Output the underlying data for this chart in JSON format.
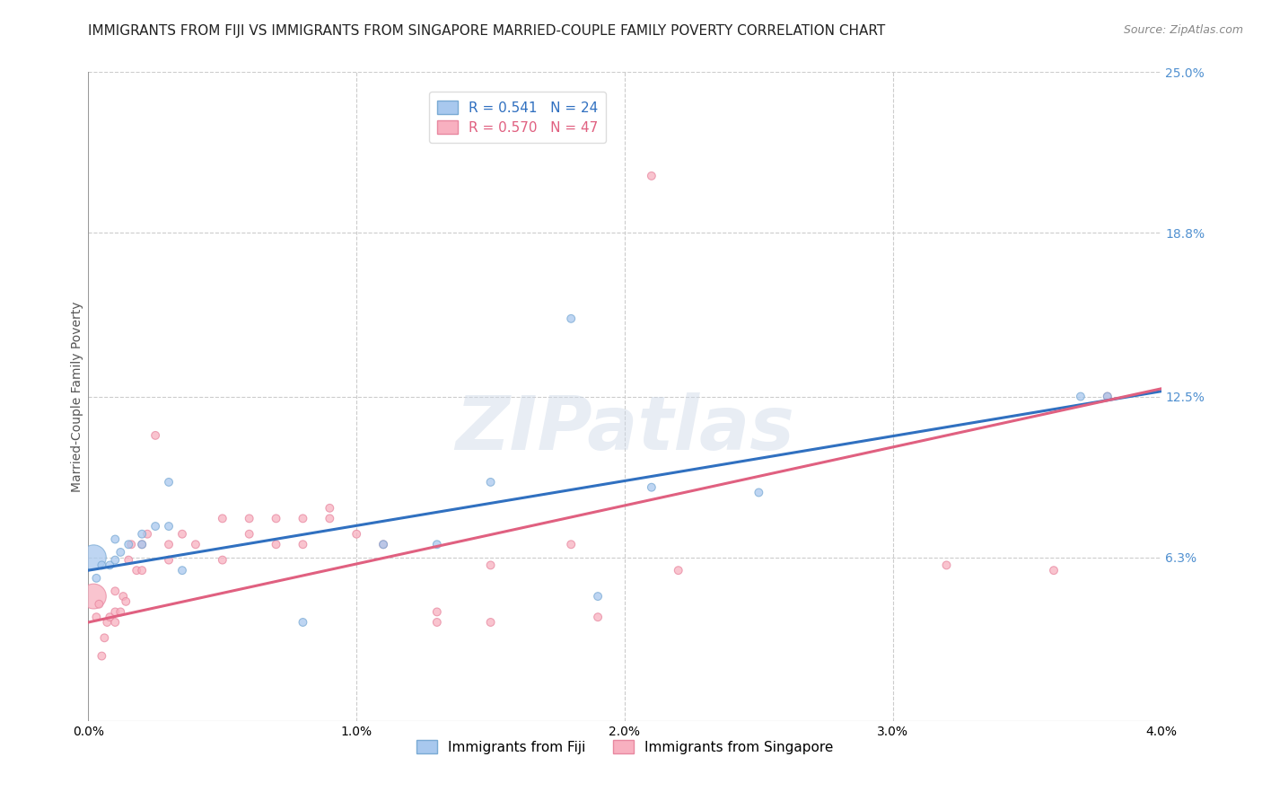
{
  "title": "IMMIGRANTS FROM FIJI VS IMMIGRANTS FROM SINGAPORE MARRIED-COUPLE FAMILY POVERTY CORRELATION CHART",
  "source": "Source: ZipAtlas.com",
  "ylabel": "Married-Couple Family Poverty",
  "xlim": [
    0.0,
    0.04
  ],
  "ylim": [
    0.0,
    0.25
  ],
  "xticks": [
    0.0,
    0.01,
    0.02,
    0.03,
    0.04
  ],
  "xtick_labels": [
    "0.0%",
    "1.0%",
    "2.0%",
    "3.0%",
    "4.0%"
  ],
  "ytick_labels_right": [
    "6.3%",
    "12.5%",
    "18.8%",
    "25.0%"
  ],
  "ytick_vals_right": [
    0.063,
    0.125,
    0.188,
    0.25
  ],
  "fiji_color": "#a8c8ee",
  "fiji_edge_color": "#7aaad4",
  "fiji_line_color": "#3070c0",
  "singapore_color": "#f8b0c0",
  "singapore_edge_color": "#e888a0",
  "singapore_line_color": "#e06080",
  "fiji_R": 0.541,
  "fiji_N": 24,
  "singapore_R": 0.57,
  "singapore_N": 47,
  "legend_label_fiji": "Immigrants from Fiji",
  "legend_label_singapore": "Immigrants from Singapore",
  "watermark": "ZIPatlas",
  "fiji_scatter_x": [
    0.0002,
    0.0003,
    0.0005,
    0.0008,
    0.001,
    0.001,
    0.0012,
    0.0015,
    0.002,
    0.002,
    0.0025,
    0.003,
    0.003,
    0.0035,
    0.008,
    0.011,
    0.013,
    0.015,
    0.018,
    0.019,
    0.021,
    0.025,
    0.037,
    0.038
  ],
  "fiji_scatter_y": [
    0.063,
    0.055,
    0.06,
    0.06,
    0.062,
    0.07,
    0.065,
    0.068,
    0.068,
    0.072,
    0.075,
    0.075,
    0.092,
    0.058,
    0.038,
    0.068,
    0.068,
    0.092,
    0.155,
    0.048,
    0.09,
    0.088,
    0.125,
    0.125
  ],
  "fiji_bubble_sizes": [
    400,
    40,
    40,
    40,
    40,
    40,
    40,
    40,
    40,
    40,
    40,
    40,
    40,
    40,
    40,
    40,
    40,
    40,
    40,
    40,
    40,
    40,
    40,
    40
  ],
  "singapore_scatter_x": [
    0.0002,
    0.0003,
    0.0004,
    0.0005,
    0.0006,
    0.0007,
    0.0008,
    0.001,
    0.001,
    0.001,
    0.0012,
    0.0013,
    0.0014,
    0.0015,
    0.0016,
    0.0018,
    0.002,
    0.002,
    0.0022,
    0.0025,
    0.003,
    0.003,
    0.0035,
    0.004,
    0.005,
    0.005,
    0.006,
    0.006,
    0.007,
    0.007,
    0.008,
    0.008,
    0.009,
    0.009,
    0.01,
    0.011,
    0.013,
    0.013,
    0.015,
    0.015,
    0.018,
    0.019,
    0.021,
    0.022,
    0.032,
    0.036,
    0.038
  ],
  "singapore_scatter_y": [
    0.048,
    0.04,
    0.045,
    0.025,
    0.032,
    0.038,
    0.04,
    0.05,
    0.038,
    0.042,
    0.042,
    0.048,
    0.046,
    0.062,
    0.068,
    0.058,
    0.058,
    0.068,
    0.072,
    0.11,
    0.062,
    0.068,
    0.072,
    0.068,
    0.062,
    0.078,
    0.072,
    0.078,
    0.068,
    0.078,
    0.068,
    0.078,
    0.078,
    0.082,
    0.072,
    0.068,
    0.038,
    0.042,
    0.038,
    0.06,
    0.068,
    0.04,
    0.21,
    0.058,
    0.06,
    0.058,
    0.125
  ],
  "singapore_bubble_sizes": [
    400,
    40,
    40,
    40,
    40,
    40,
    40,
    40,
    40,
    40,
    40,
    40,
    40,
    40,
    40,
    40,
    40,
    40,
    40,
    40,
    40,
    40,
    40,
    40,
    40,
    40,
    40,
    40,
    40,
    40,
    40,
    40,
    40,
    40,
    40,
    40,
    40,
    40,
    40,
    40,
    40,
    40,
    40,
    40,
    40,
    40,
    40
  ],
  "fiji_trend_x0": 0.0,
  "fiji_trend_y0": 0.058,
  "fiji_trend_x1": 0.04,
  "fiji_trend_y1": 0.127,
  "sing_trend_x0": 0.0,
  "sing_trend_y0": 0.038,
  "sing_trend_x1": 0.04,
  "sing_trend_y1": 0.128,
  "background_color": "#ffffff",
  "grid_color": "#cccccc",
  "title_fontsize": 11,
  "axis_label_fontsize": 10,
  "tick_fontsize": 10,
  "legend_fontsize": 11,
  "right_tick_color": "#5090d0"
}
